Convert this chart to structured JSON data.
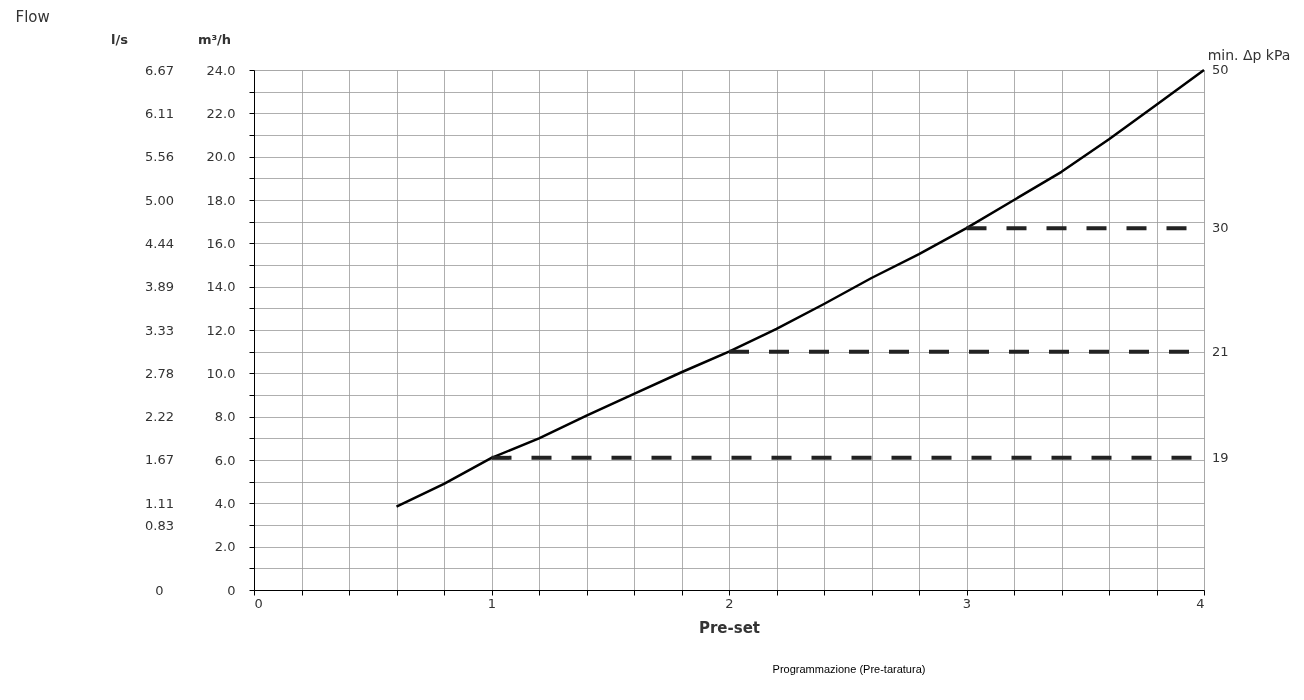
{
  "chart_data": {
    "type": "line",
    "title": "Flow",
    "xlabel": "Pre-set",
    "ylabel": "m³/h",
    "y3label": "l/s",
    "xlim": [
      0,
      4
    ],
    "xticks": [
      0,
      {
        "value": 0.2,
        "label": null
      },
      {
        "value": 0.4,
        "label": null
      },
      {
        "value": 0.6,
        "label": null
      },
      {
        "value": 0.8,
        "label": null
      },
      1,
      {
        "value": 1.2,
        "label": null
      },
      {
        "value": 1.4,
        "label": null
      },
      {
        "value": 1.6,
        "label": null
      },
      {
        "value": 1.8,
        "label": null
      },
      2,
      {
        "value": 2.2,
        "label": null
      },
      {
        "value": 2.4,
        "label": null
      },
      {
        "value": 2.6,
        "label": null
      },
      {
        "value": 2.8,
        "label": null
      },
      3,
      {
        "value": 3.2,
        "label": null
      },
      {
        "value": 3.4,
        "label": null
      },
      {
        "value": 3.6,
        "label": null
      },
      {
        "value": 3.8,
        "label": null
      },
      4
    ],
    "ylim": [
      0,
      24
    ],
    "yticks": [
      0,
      {
        "value": 1,
        "label": null
      },
      {
        "value": 2,
        "label": "2.0"
      },
      {
        "value": 3,
        "label": null
      },
      {
        "value": 4,
        "label": "4.0"
      },
      {
        "value": 5,
        "label": null
      },
      {
        "value": 6,
        "label": "6.0"
      },
      {
        "value": 7,
        "label": null
      },
      {
        "value": 8,
        "label": "8.0"
      },
      {
        "value": 9,
        "label": null
      },
      {
        "value": 10,
        "label": "10.0"
      },
      {
        "value": 11,
        "label": null
      },
      {
        "value": 12,
        "label": "12.0"
      },
      {
        "value": 13,
        "label": null
      },
      {
        "value": 14,
        "label": "14.0"
      },
      {
        "value": 15,
        "label": null
      },
      {
        "value": 16,
        "label": "16.0"
      },
      {
        "value": 17,
        "label": null
      },
      {
        "value": 18,
        "label": "18.0"
      },
      {
        "value": 19,
        "label": null
      },
      {
        "value": 20,
        "label": "20.0"
      },
      {
        "value": 21,
        "label": null
      },
      {
        "value": 22,
        "label": "22.0"
      },
      {
        "value": 23,
        "label": null
      },
      {
        "value": 24,
        "label": "24.0"
      }
    ],
    "y3lim": [
      0,
      6.67
    ],
    "y3ticks": [
      0,
      0.83,
      1.11,
      1.67,
      2.22,
      2.78,
      3.33,
      3.89,
      4.44,
      {
        "value": 5,
        "label": "5.00"
      },
      5.56,
      6.11,
      6.67
    ],
    "grid": true,
    "series": [
      {
        "name": "50",
        "color": "#000000",
        "line_style": "solid",
        "x": [
          0.6,
          0.8,
          1.0,
          1.2,
          1.4,
          1.6,
          1.8,
          2.0,
          2.2,
          2.4,
          2.6,
          2.8,
          3.0,
          3.2,
          3.4,
          3.6,
          3.8,
          4.0
        ],
        "values": [
          3.85,
          4.9,
          6.1,
          7.0,
          8.05,
          9.05,
          10.05,
          11.0,
          12.05,
          13.2,
          14.4,
          15.5,
          16.7,
          18.0,
          19.3,
          20.8,
          22.4,
          24.0
        ]
      },
      {
        "name": "19",
        "color": "#222222",
        "line_style": "dashed",
        "x": [
          1,
          4
        ],
        "values": [
          6.1,
          6.1
        ]
      },
      {
        "name": "21",
        "color": "#222222",
        "line_style": "dashed",
        "x": [
          2,
          4
        ],
        "values": [
          11.0,
          11.0
        ]
      },
      {
        "name": "30",
        "color": "#222222",
        "line_style": "dashed",
        "x": [
          3,
          4
        ],
        "values": [
          16.7,
          16.7
        ]
      }
    ],
    "legend_title": "min. Δp kPa",
    "annotations": [
      "Programmazione (Pre-taratura)"
    ]
  }
}
